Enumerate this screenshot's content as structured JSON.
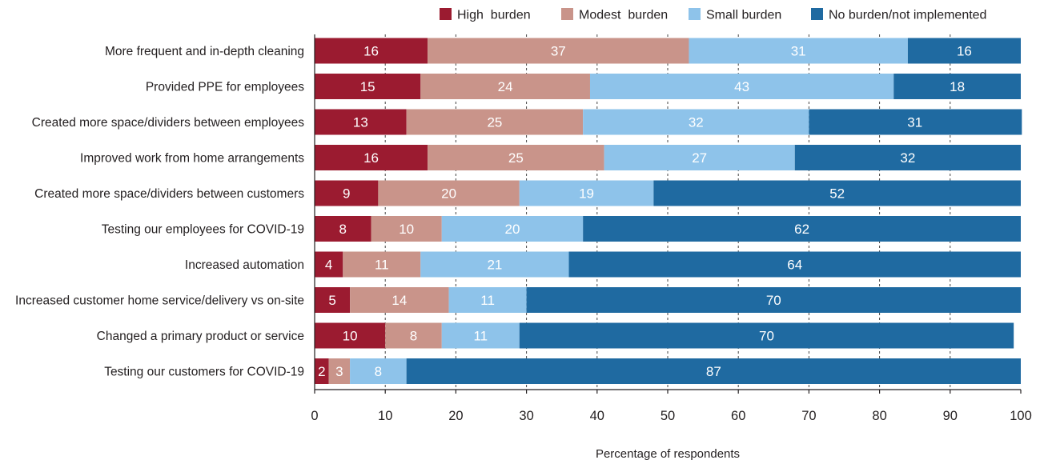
{
  "chart_data": {
    "type": "bar",
    "orientation": "horizontal",
    "stacked": true,
    "xlabel": "Percentage of respondents",
    "xlim": [
      0,
      100
    ],
    "xticks": [
      0,
      10,
      20,
      30,
      40,
      50,
      60,
      70,
      80,
      90,
      100
    ],
    "grid": "vertical dashed",
    "legend_position": "top-right",
    "categories": [
      "More frequent and in-depth cleaning",
      "Provided PPE for employees",
      "Created more space/dividers between employees",
      "Improved work from home arrangements",
      "Created more space/dividers between customers",
      "Testing our employees for COVID-19",
      "Increased automation",
      "Increased customer home service/delivery vs on-site",
      "Changed a primary product or service",
      "Testing our customers for COVID-19"
    ],
    "series": [
      {
        "name": "High  burden",
        "color": "#9b1b30",
        "values": [
          16,
          15,
          13,
          16,
          9,
          8,
          4,
          5,
          10,
          2
        ]
      },
      {
        "name": "Modest  burden",
        "color": "#c9948a",
        "values": [
          37,
          24,
          25,
          25,
          20,
          10,
          11,
          14,
          8,
          3
        ]
      },
      {
        "name": "Small burden",
        "color": "#8ec3ea",
        "values": [
          31,
          43,
          32,
          27,
          19,
          20,
          21,
          11,
          11,
          8
        ]
      },
      {
        "name": "No burden/not implemented",
        "color": "#1f6aa1",
        "values": [
          16,
          18,
          31,
          32,
          52,
          62,
          64,
          70,
          70,
          87
        ]
      }
    ]
  }
}
